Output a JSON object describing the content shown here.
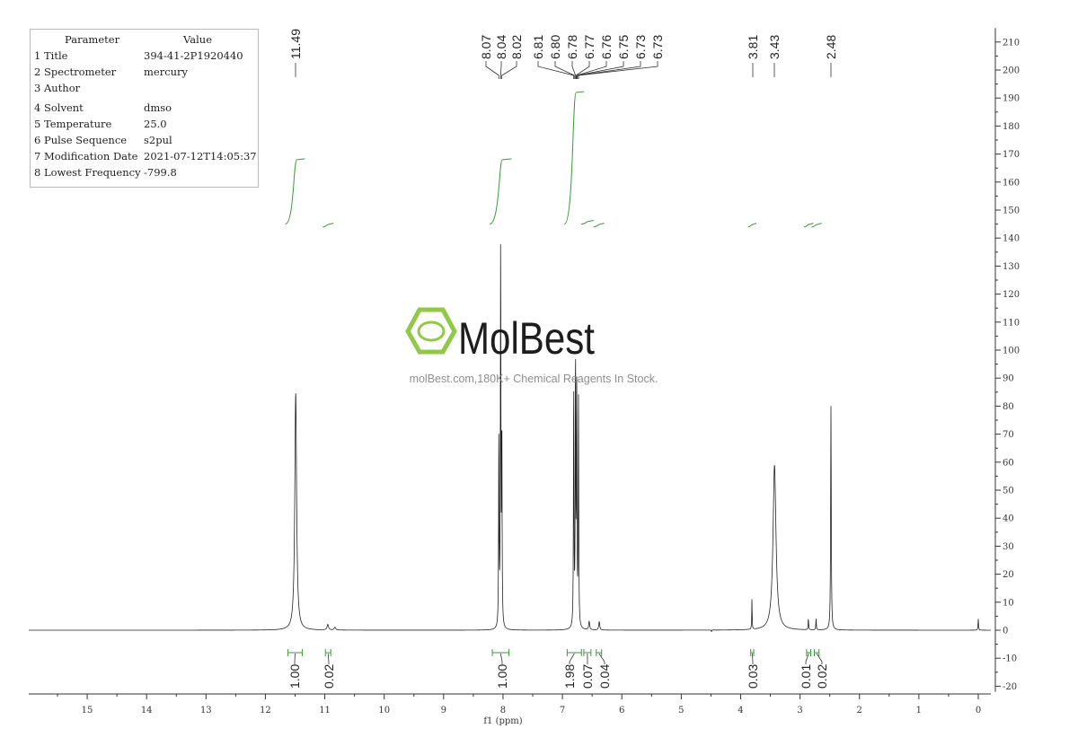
{
  "parameters": {
    "header": [
      "Parameter",
      "Value"
    ],
    "rows": [
      [
        "1 Title",
        "394-41-2P1920440"
      ],
      [
        "2 Spectrometer",
        "mercury"
      ],
      [
        "3 Author",
        ""
      ],
      [
        "4 Solvent",
        "dmso"
      ],
      [
        "5 Temperature",
        "25.0"
      ],
      [
        "6 Pulse Sequence",
        "s2pul"
      ],
      [
        "7 Modification Date",
        "2021-07-12T14:05:37"
      ],
      [
        "8 Lowest Frequency",
        "-799.8"
      ]
    ]
  },
  "watermark": {
    "logo_text": "MolBest",
    "tagline": "molBest.com,180K+ Chemical Reagents In Stock.",
    "color": "#8cc63f"
  },
  "chart_data": {
    "type": "line",
    "xlabel": "f1 (ppm)",
    "ylabel": "",
    "xlim": [
      16,
      -0.2
    ],
    "ylim": [
      -22,
      215
    ],
    "x_ticks": [
      15,
      14,
      13,
      12,
      11,
      10,
      9,
      8,
      7,
      6,
      5,
      4,
      3,
      2,
      1,
      0
    ],
    "y_ticks": [
      -20,
      -10,
      0,
      10,
      20,
      30,
      40,
      50,
      60,
      70,
      80,
      90,
      100,
      110,
      120,
      130,
      140,
      150,
      160,
      170,
      180,
      190,
      200,
      210
    ],
    "x_reversed": true,
    "grid": false,
    "line_color": "#222222",
    "integral_color": "#3a9a3a",
    "peaks": [
      {
        "ppm": 11.49,
        "height": 85,
        "width": 0.018
      },
      {
        "ppm": 10.95,
        "height": 2,
        "width": 0.015
      },
      {
        "ppm": 10.83,
        "height": 1,
        "width": 0.015
      },
      {
        "ppm": 8.07,
        "height": 70,
        "width": 0.005
      },
      {
        "ppm": 8.04,
        "height": 137,
        "width": 0.005
      },
      {
        "ppm": 8.02,
        "height": 71,
        "width": 0.005
      },
      {
        "ppm": 6.81,
        "height": 88,
        "width": 0.005
      },
      {
        "ppm": 6.78,
        "height": 98,
        "width": 0.005
      },
      {
        "ppm": 6.76,
        "height": 83,
        "width": 0.005
      },
      {
        "ppm": 6.73,
        "height": 83,
        "width": 0.005
      },
      {
        "ppm": 6.55,
        "height": 3,
        "width": 0.01
      },
      {
        "ppm": 6.38,
        "height": 3,
        "width": 0.01
      },
      {
        "ppm": 3.81,
        "height": 11,
        "width": 0.004
      },
      {
        "ppm": 3.43,
        "height": 59,
        "width": 0.03
      },
      {
        "ppm": 2.86,
        "height": 4,
        "width": 0.005
      },
      {
        "ppm": 2.73,
        "height": 4,
        "width": 0.005
      },
      {
        "ppm": 2.48,
        "height": 80,
        "width": 0.006
      },
      {
        "ppm": 0.0,
        "height": 4,
        "width": 0.005
      }
    ],
    "peak_labels": [
      "11.49",
      "8.07",
      "8.04",
      "8.02",
      "6.81",
      "6.80",
      "6.78",
      "6.77",
      "6.76",
      "6.75",
      "6.73",
      "6.73",
      "3.81",
      "3.43",
      "2.48"
    ],
    "peak_label_ppm": [
      11.49,
      8.07,
      8.04,
      8.02,
      6.81,
      6.8,
      6.78,
      6.77,
      6.76,
      6.75,
      6.73,
      6.73,
      3.81,
      3.43,
      2.48
    ],
    "integrals": [
      {
        "label": "1.00",
        "from": 11.62,
        "to": 11.38,
        "curve_from": 145,
        "curve_to": 168
      },
      {
        "label": "0.02",
        "from": 10.99,
        "to": 10.9,
        "curve_from": 144,
        "curve_to": 145
      },
      {
        "label": "1.00",
        "from": 8.18,
        "to": 7.9,
        "curve_from": 145,
        "curve_to": 168
      },
      {
        "label": "1.98",
        "from": 6.92,
        "to": 6.68,
        "curve_from": 145,
        "curve_to": 192
      },
      {
        "label": "0.07",
        "from": 6.64,
        "to": 6.52,
        "curve_from": 145,
        "curve_to": 146
      },
      {
        "label": "0.04",
        "from": 6.43,
        "to": 6.34,
        "curve_from": 144,
        "curve_to": 145
      },
      {
        "label": "0.03",
        "from": 3.83,
        "to": 3.78,
        "curve_from": 144,
        "curve_to": 145
      },
      {
        "label": "0.01",
        "from": 2.89,
        "to": 2.82,
        "curve_from": 144,
        "curve_to": 145
      },
      {
        "label": "0.02",
        "from": 2.76,
        "to": 2.68,
        "curve_from": 144,
        "curve_to": 145
      }
    ]
  }
}
